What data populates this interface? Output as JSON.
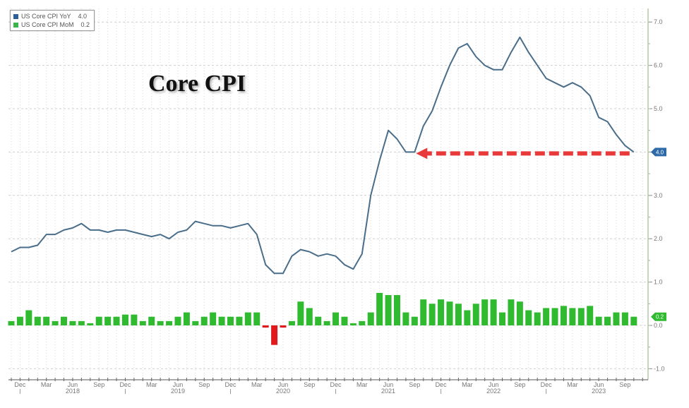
{
  "chart_data": {
    "type": "line+bar",
    "title": "Core CPI",
    "xlabel": "",
    "ylabel": "",
    "ylim": [
      -1.0,
      7.0
    ],
    "y_ticks": [
      "7.0",
      "6.0",
      "5.0",
      "4.0",
      "3.0",
      "2.0",
      "1.0",
      "0.0",
      "-1.0"
    ],
    "grid": true,
    "legend_position": "top-left",
    "x_month_ticks": [
      "Dec",
      "Mar",
      "Jun",
      "Sep",
      "Dec",
      "Mar",
      "Jun",
      "Sep",
      "Dec",
      "Mar",
      "Jun",
      "Sep",
      "Dec",
      "Mar",
      "Jun",
      "Sep",
      "Dec",
      "Mar",
      "Jun",
      "Sep",
      "Dec",
      "Mar",
      "Jun",
      "Sep"
    ],
    "x_year_labels": [
      "2018",
      "2019",
      "2020",
      "2021",
      "2022",
      "2023"
    ],
    "x": [
      "Nov 2017",
      "Dec 2017",
      "Jan 2018",
      "Feb 2018",
      "Mar 2018",
      "Apr 2018",
      "May 2018",
      "Jun 2018",
      "Jul 2018",
      "Aug 2018",
      "Sep 2018",
      "Oct 2018",
      "Nov 2018",
      "Dec 2018",
      "Jan 2019",
      "Feb 2019",
      "Mar 2019",
      "Apr 2019",
      "May 2019",
      "Jun 2019",
      "Jul 2019",
      "Aug 2019",
      "Sep 2019",
      "Oct 2019",
      "Nov 2019",
      "Dec 2019",
      "Jan 2020",
      "Feb 2020",
      "Mar 2020",
      "Apr 2020",
      "May 2020",
      "Jun 2020",
      "Jul 2020",
      "Aug 2020",
      "Sep 2020",
      "Oct 2020",
      "Nov 2020",
      "Dec 2020",
      "Jan 2021",
      "Feb 2021",
      "Mar 2021",
      "Apr 2021",
      "May 2021",
      "Jun 2021",
      "Jul 2021",
      "Aug 2021",
      "Sep 2021",
      "Oct 2021",
      "Nov 2021",
      "Dec 2021",
      "Jan 2022",
      "Feb 2022",
      "Mar 2022",
      "Apr 2022",
      "May 2022",
      "Jun 2022",
      "Jul 2022",
      "Aug 2022",
      "Sep 2022",
      "Oct 2022",
      "Nov 2022",
      "Dec 2022",
      "Jan 2023",
      "Feb 2023",
      "Mar 2023",
      "Apr 2023",
      "May 2023",
      "Jun 2023",
      "Jul 2023",
      "Aug 2023",
      "Sep 2023",
      "Oct 2023"
    ],
    "series": [
      {
        "name": "US Core CPI YoY",
        "type": "line",
        "color": "#4a6e8a",
        "last_value": "4.0",
        "values": [
          1.7,
          1.8,
          1.8,
          1.85,
          2.1,
          2.1,
          2.2,
          2.25,
          2.35,
          2.2,
          2.2,
          2.15,
          2.2,
          2.2,
          2.15,
          2.1,
          2.05,
          2.1,
          2.0,
          2.15,
          2.2,
          2.4,
          2.35,
          2.3,
          2.3,
          2.25,
          2.3,
          2.35,
          2.1,
          1.4,
          1.2,
          1.2,
          1.6,
          1.75,
          1.7,
          1.6,
          1.65,
          1.6,
          1.4,
          1.3,
          1.65,
          3.0,
          3.8,
          4.5,
          4.3,
          4.0,
          4.0,
          4.6,
          4.95,
          5.5,
          6.0,
          6.4,
          6.5,
          6.2,
          6.0,
          5.9,
          5.9,
          6.3,
          6.65,
          6.3,
          6.0,
          5.7,
          5.6,
          5.5,
          5.6,
          5.5,
          5.3,
          4.8,
          4.7,
          4.4,
          4.15,
          4.0
        ]
      },
      {
        "name": "US Core CPI MoM",
        "type": "bar",
        "color": "#2fba2f",
        "negative_color": "#e0191d",
        "last_value": "0.2",
        "values": [
          0.1,
          0.2,
          0.35,
          0.2,
          0.2,
          0.1,
          0.2,
          0.1,
          0.1,
          0.05,
          0.2,
          0.2,
          0.2,
          0.25,
          0.25,
          0.1,
          0.2,
          0.1,
          0.1,
          0.2,
          0.3,
          0.1,
          0.2,
          0.3,
          0.2,
          0.2,
          0.2,
          0.3,
          0.3,
          -0.05,
          -0.45,
          -0.05,
          0.1,
          0.55,
          0.4,
          0.2,
          0.1,
          0.3,
          0.2,
          0.05,
          0.1,
          0.3,
          0.75,
          0.7,
          0.7,
          0.3,
          0.2,
          0.6,
          0.5,
          0.6,
          0.55,
          0.5,
          0.35,
          0.5,
          0.6,
          0.6,
          0.3,
          0.6,
          0.55,
          0.35,
          0.3,
          0.4,
          0.4,
          0.45,
          0.4,
          0.4,
          0.45,
          0.2,
          0.2,
          0.3,
          0.3,
          0.2
        ]
      }
    ],
    "annotations": [
      {
        "type": "dashed-arrow",
        "color": "#e8393b",
        "from": "Oct 2023",
        "to": "Sep 2021",
        "level": 4.0,
        "direction": "left"
      }
    ],
    "right_axis_badges": [
      {
        "value": "4.0",
        "color": "#2f6aa8"
      },
      {
        "value": "0.2",
        "color": "#2fba2f"
      }
    ]
  },
  "legend": {
    "items": [
      {
        "label": "US Core CPI YoY",
        "value": "4.0",
        "color": "#2d5f9a"
      },
      {
        "label": "US Core CPI MoM",
        "value": "0.2",
        "color": "#39b54a"
      }
    ]
  }
}
